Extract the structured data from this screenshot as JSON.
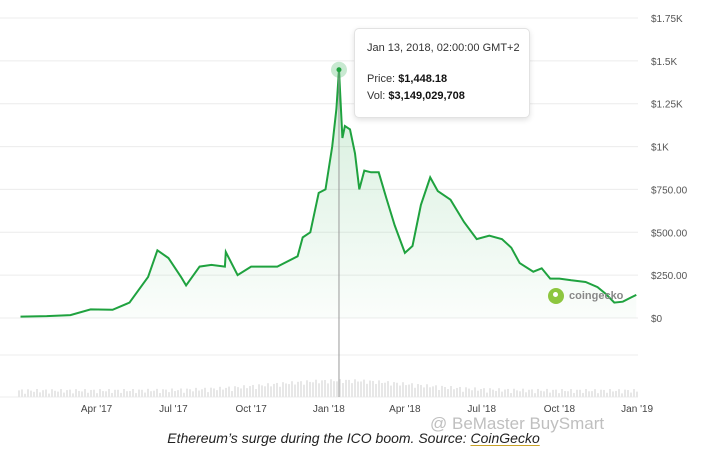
{
  "chart_data": {
    "type": "area",
    "xlabel": "",
    "ylabel": "",
    "ylim": [
      0,
      1750
    ],
    "grid": true,
    "y_ticks": [
      "$1.75K",
      "$1.5K",
      "$1.25K",
      "$1K",
      "$750.00",
      "$500.00",
      "$250.00",
      "$0"
    ],
    "x_ticks": [
      "Apr '17",
      "Jul '17",
      "Oct '17",
      "Jan '18",
      "Apr '18",
      "Jul '18",
      "Oct '18",
      "Jan '19"
    ],
    "line_color": "#1fa23f",
    "series": [
      {
        "x": [
          "2017-01-01",
          "2017-02-01",
          "2017-03-01",
          "2017-03-25",
          "2017-04-20",
          "2017-05-10",
          "2017-06-01",
          "2017-06-12",
          "2017-06-25",
          "2017-07-10",
          "2017-07-16",
          "2017-08-01",
          "2017-08-15",
          "2017-08-31",
          "2017-09-01",
          "2017-09-15",
          "2017-10-01",
          "2017-10-15",
          "2017-11-01",
          "2017-11-25",
          "2017-12-01",
          "2017-12-10",
          "2017-12-20",
          "2017-12-28",
          "2018-01-05",
          "2018-01-10",
          "2018-01-13",
          "2018-01-17",
          "2018-01-20",
          "2018-01-26",
          "2018-02-01",
          "2018-02-06",
          "2018-02-12",
          "2018-02-20",
          "2018-03-01",
          "2018-03-10",
          "2018-03-20",
          "2018-04-01",
          "2018-04-10",
          "2018-04-20",
          "2018-05-01",
          "2018-05-10",
          "2018-05-25",
          "2018-06-10",
          "2018-06-25",
          "2018-07-10",
          "2018-07-25",
          "2018-08-05",
          "2018-08-15",
          "2018-08-31",
          "2018-09-10",
          "2018-09-20",
          "2018-10-01",
          "2018-10-15",
          "2018-11-01",
          "2018-11-15",
          "2018-11-25",
          "2018-12-05",
          "2018-12-15",
          "2018-12-25",
          "2018-12-31"
        ],
        "y": [
          8,
          11,
          17,
          50,
          48,
          90,
          240,
          395,
          350,
          240,
          190,
          300,
          310,
          300,
          385,
          250,
          300,
          300,
          300,
          360,
          470,
          500,
          730,
          750,
          1000,
          1220,
          1448,
          1050,
          1120,
          1100,
          960,
          750,
          860,
          850,
          850,
          700,
          540,
          380,
          420,
          660,
          820,
          740,
          690,
          560,
          460,
          480,
          460,
          410,
          320,
          270,
          290,
          230,
          230,
          220,
          210,
          180,
          140,
          90,
          95,
          120,
          135
        ]
      }
    ],
    "tooltip": {
      "date": "Jan 13, 2018, 02:00:00 GMT+2",
      "price_label": "Price:",
      "price_value": "$1,448.18",
      "vol_label": "Vol:",
      "vol_value": "$3,149,029,708"
    }
  },
  "brand": {
    "name": "coingecko"
  },
  "watermark": {
    "text": "@ BeMaster BuySmart"
  },
  "caption": {
    "text": "Ethereum’s surge during the ICO boom. Source: ",
    "link": "CoinGecko"
  }
}
